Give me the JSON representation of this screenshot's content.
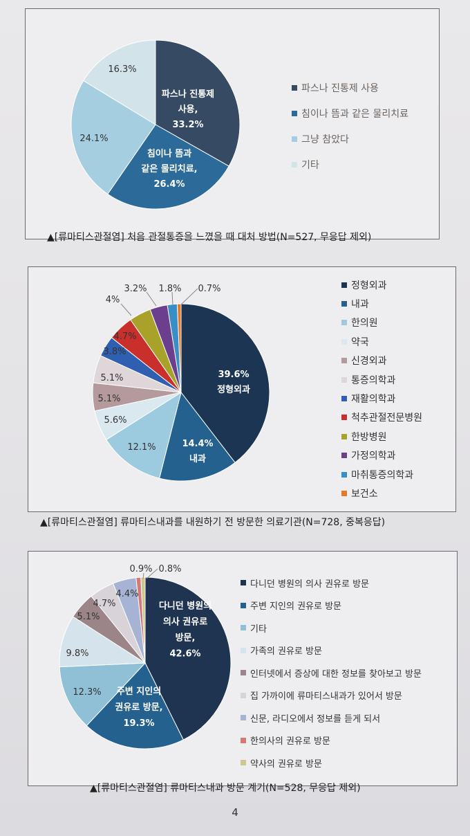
{
  "charts": [
    {
      "caption": "▲[류마티스관절염] 처음 관절통증을 느꼈을 때 대처 방법(N=527, 무응답 제외)",
      "chart_data": {
        "type": "pie",
        "title": "",
        "slices": [
          {
            "name": "파스나 진통제 사용",
            "value": 33.2,
            "label": "파스나 진통제|사용,|33.2%",
            "color": "#364a63"
          },
          {
            "name": "침이나 뜸과 같은 물리치료",
            "value": 26.4,
            "label": "침이나 뜸과|같은 물리치료,|26.4%",
            "color": "#2b6a99"
          },
          {
            "name": "그냥 참았다",
            "value": 24.1,
            "label": "24.1%",
            "color": "#a5cfe0"
          },
          {
            "name": "기타",
            "value": 16.3,
            "label": "16.3%",
            "color": "#d3e3ea"
          }
        ],
        "legend": [
          "파스나 진통제 사용",
          "침이나 뜸과 같은 물리치료",
          "그냥 참았다",
          "기타"
        ],
        "legend_placement": "right"
      }
    },
    {
      "caption": "▲[류마티스관절염] 류마티스내과를 내원하기 전 방문한 의료기관(N=728, 중복응답)",
      "chart_data": {
        "type": "pie",
        "title": "",
        "slices": [
          {
            "name": "정형외과",
            "value": 39.6,
            "label": "39.6%|정형외과",
            "color": "#1c3553"
          },
          {
            "name": "내과",
            "value": 14.4,
            "label": "14.4%|내과",
            "color": "#24618f"
          },
          {
            "name": "한의원",
            "value": 12.1,
            "label": "12.1%",
            "color": "#9ccade"
          },
          {
            "name": "약국",
            "value": 5.6,
            "label": "5.6%",
            "color": "#dae8ef"
          },
          {
            "name": "신경외과",
            "value": 5.1,
            "label": "5.1%",
            "color": "#b49a9c"
          },
          {
            "name": "통증의학과",
            "value": 5.1,
            "label": "5.1%",
            "color": "#dfd6da"
          },
          {
            "name": "재활의학과",
            "value": 3.8,
            "label": "3.8%",
            "color": "#2f5fb0"
          },
          {
            "name": "척추관절전문병원",
            "value": 4.7,
            "label": "4.7%",
            "color": "#c9302c"
          },
          {
            "name": "한방병원",
            "value": 4.0,
            "label": "4%",
            "color": "#a8a22a"
          },
          {
            "name": "가정의학과",
            "value": 3.2,
            "label": "3.2%",
            "color": "#6b3f8e"
          },
          {
            "name": "마취통증의학과",
            "value": 1.8,
            "label": "1.8%",
            "color": "#3a8ec7"
          },
          {
            "name": "보건소",
            "value": 0.7,
            "label": "0.7%",
            "color": "#e27a2a"
          }
        ],
        "legend": [
          "정형외과",
          "내과",
          "한의원",
          "약국",
          "신경외과",
          "통증의학과",
          "재활의학과",
          "척추관절전문병원",
          "한방병원",
          "가정의학과",
          "마취통증의학과",
          "보건소"
        ],
        "legend_placement": "right"
      }
    },
    {
      "caption": "▲[류마티스관절염] 류마티스내과 방문 계기(N=528, 무응답 제외)",
      "chart_data": {
        "type": "pie",
        "title": "",
        "slices": [
          {
            "name": "다니던 병원의 의사 권유로 방문",
            "value": 42.6,
            "label": "다니던 병원의|의사 권유로|방문,|42.6%",
            "color": "#1e3450"
          },
          {
            "name": "주변 지인의 권유로 방문",
            "value": 19.3,
            "label": "주변 지인의|권유로 방문,|19.3%",
            "color": "#24618f"
          },
          {
            "name": "기타",
            "value": 12.3,
            "label": "12.3%",
            "color": "#8fc0d6"
          },
          {
            "name": "가족의 권유로 방문",
            "value": 9.8,
            "label": "9.8%",
            "color": "#d5e4ec"
          },
          {
            "name": "인터넷에서 증상에 대한 정보를 찾아보고 방문",
            "value": 5.1,
            "label": "5.1%",
            "color": "#9b8589"
          },
          {
            "name": "집 가까이에 류마티스내과가 있어서 방문",
            "value": 4.7,
            "label": "4.7%",
            "color": "#d7d3d8"
          },
          {
            "name": "신문, 라디오에서 정보를 듣게 되서",
            "value": 4.4,
            "label": "4.4%",
            "color": "#a7b3d4"
          },
          {
            "name": "한의사의 권유로 방문",
            "value": 0.9,
            "label": "0.9%",
            "color": "#d27a78"
          },
          {
            "name": "약사의 권유로 방문",
            "value": 0.8,
            "label": "0.8%",
            "color": "#cdc78f"
          }
        ],
        "legend": [
          "다니던 병원의 의사 권유로 방문",
          "주변 지인의 권유로 방문",
          "기타",
          "가족의 권유로 방문",
          "인터넷에서 증상에 대한 정보를 찾아보고 방문",
          "집 가까이에 류마티스내과가 있어서 방문",
          "신문, 라디오에서 정보를 듣게 되서",
          "한의사의 권유로 방문",
          "약사의 권유로 방문"
        ],
        "legend_placement": "right"
      }
    }
  ],
  "page_number": "4"
}
